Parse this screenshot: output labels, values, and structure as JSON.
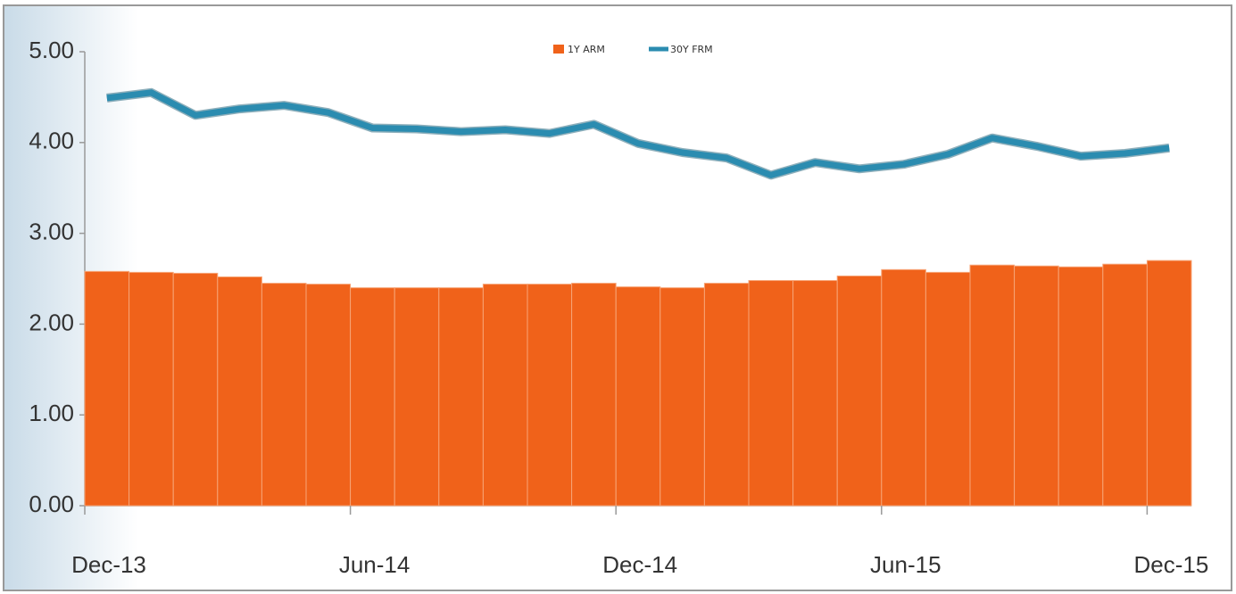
{
  "chart_data": {
    "type": "bar_line",
    "categories": [
      "Dec-13",
      null,
      null,
      null,
      null,
      null,
      "Jun-14",
      null,
      null,
      null,
      null,
      null,
      "Dec-14",
      null,
      null,
      null,
      null,
      null,
      "Jun-15",
      null,
      null,
      null,
      null,
      null,
      "Dec-15"
    ],
    "series": [
      {
        "name": "1Y ARM",
        "type": "bar",
        "color": "#f0621a",
        "values": [
          2.58,
          2.57,
          2.56,
          2.52,
          2.45,
          2.44,
          2.4,
          2.4,
          2.4,
          2.44,
          2.44,
          2.45,
          2.41,
          2.4,
          2.45,
          2.48,
          2.48,
          2.53,
          2.6,
          2.57,
          2.65,
          2.64,
          2.63,
          2.66,
          2.7
        ]
      },
      {
        "name": "30Y FRM",
        "type": "line",
        "color": "#2b8cb0",
        "values": [
          4.49,
          4.55,
          4.3,
          4.37,
          4.41,
          4.33,
          4.16,
          4.15,
          4.12,
          4.14,
          4.1,
          4.2,
          3.99,
          3.89,
          3.83,
          3.64,
          3.78,
          3.71,
          3.76,
          3.87,
          4.05,
          3.96,
          3.85,
          3.88,
          3.94
        ]
      }
    ],
    "ylim": [
      0,
      5
    ],
    "yticks": [
      {
        "value": 0,
        "label": "0.00"
      },
      {
        "value": 1,
        "label": "1.00"
      },
      {
        "value": 2,
        "label": "2.00"
      },
      {
        "value": 3,
        "label": "3.00"
      },
      {
        "value": 4,
        "label": "4.00"
      },
      {
        "value": 5,
        "label": "5.00"
      }
    ],
    "grid": false,
    "legend": "top"
  }
}
